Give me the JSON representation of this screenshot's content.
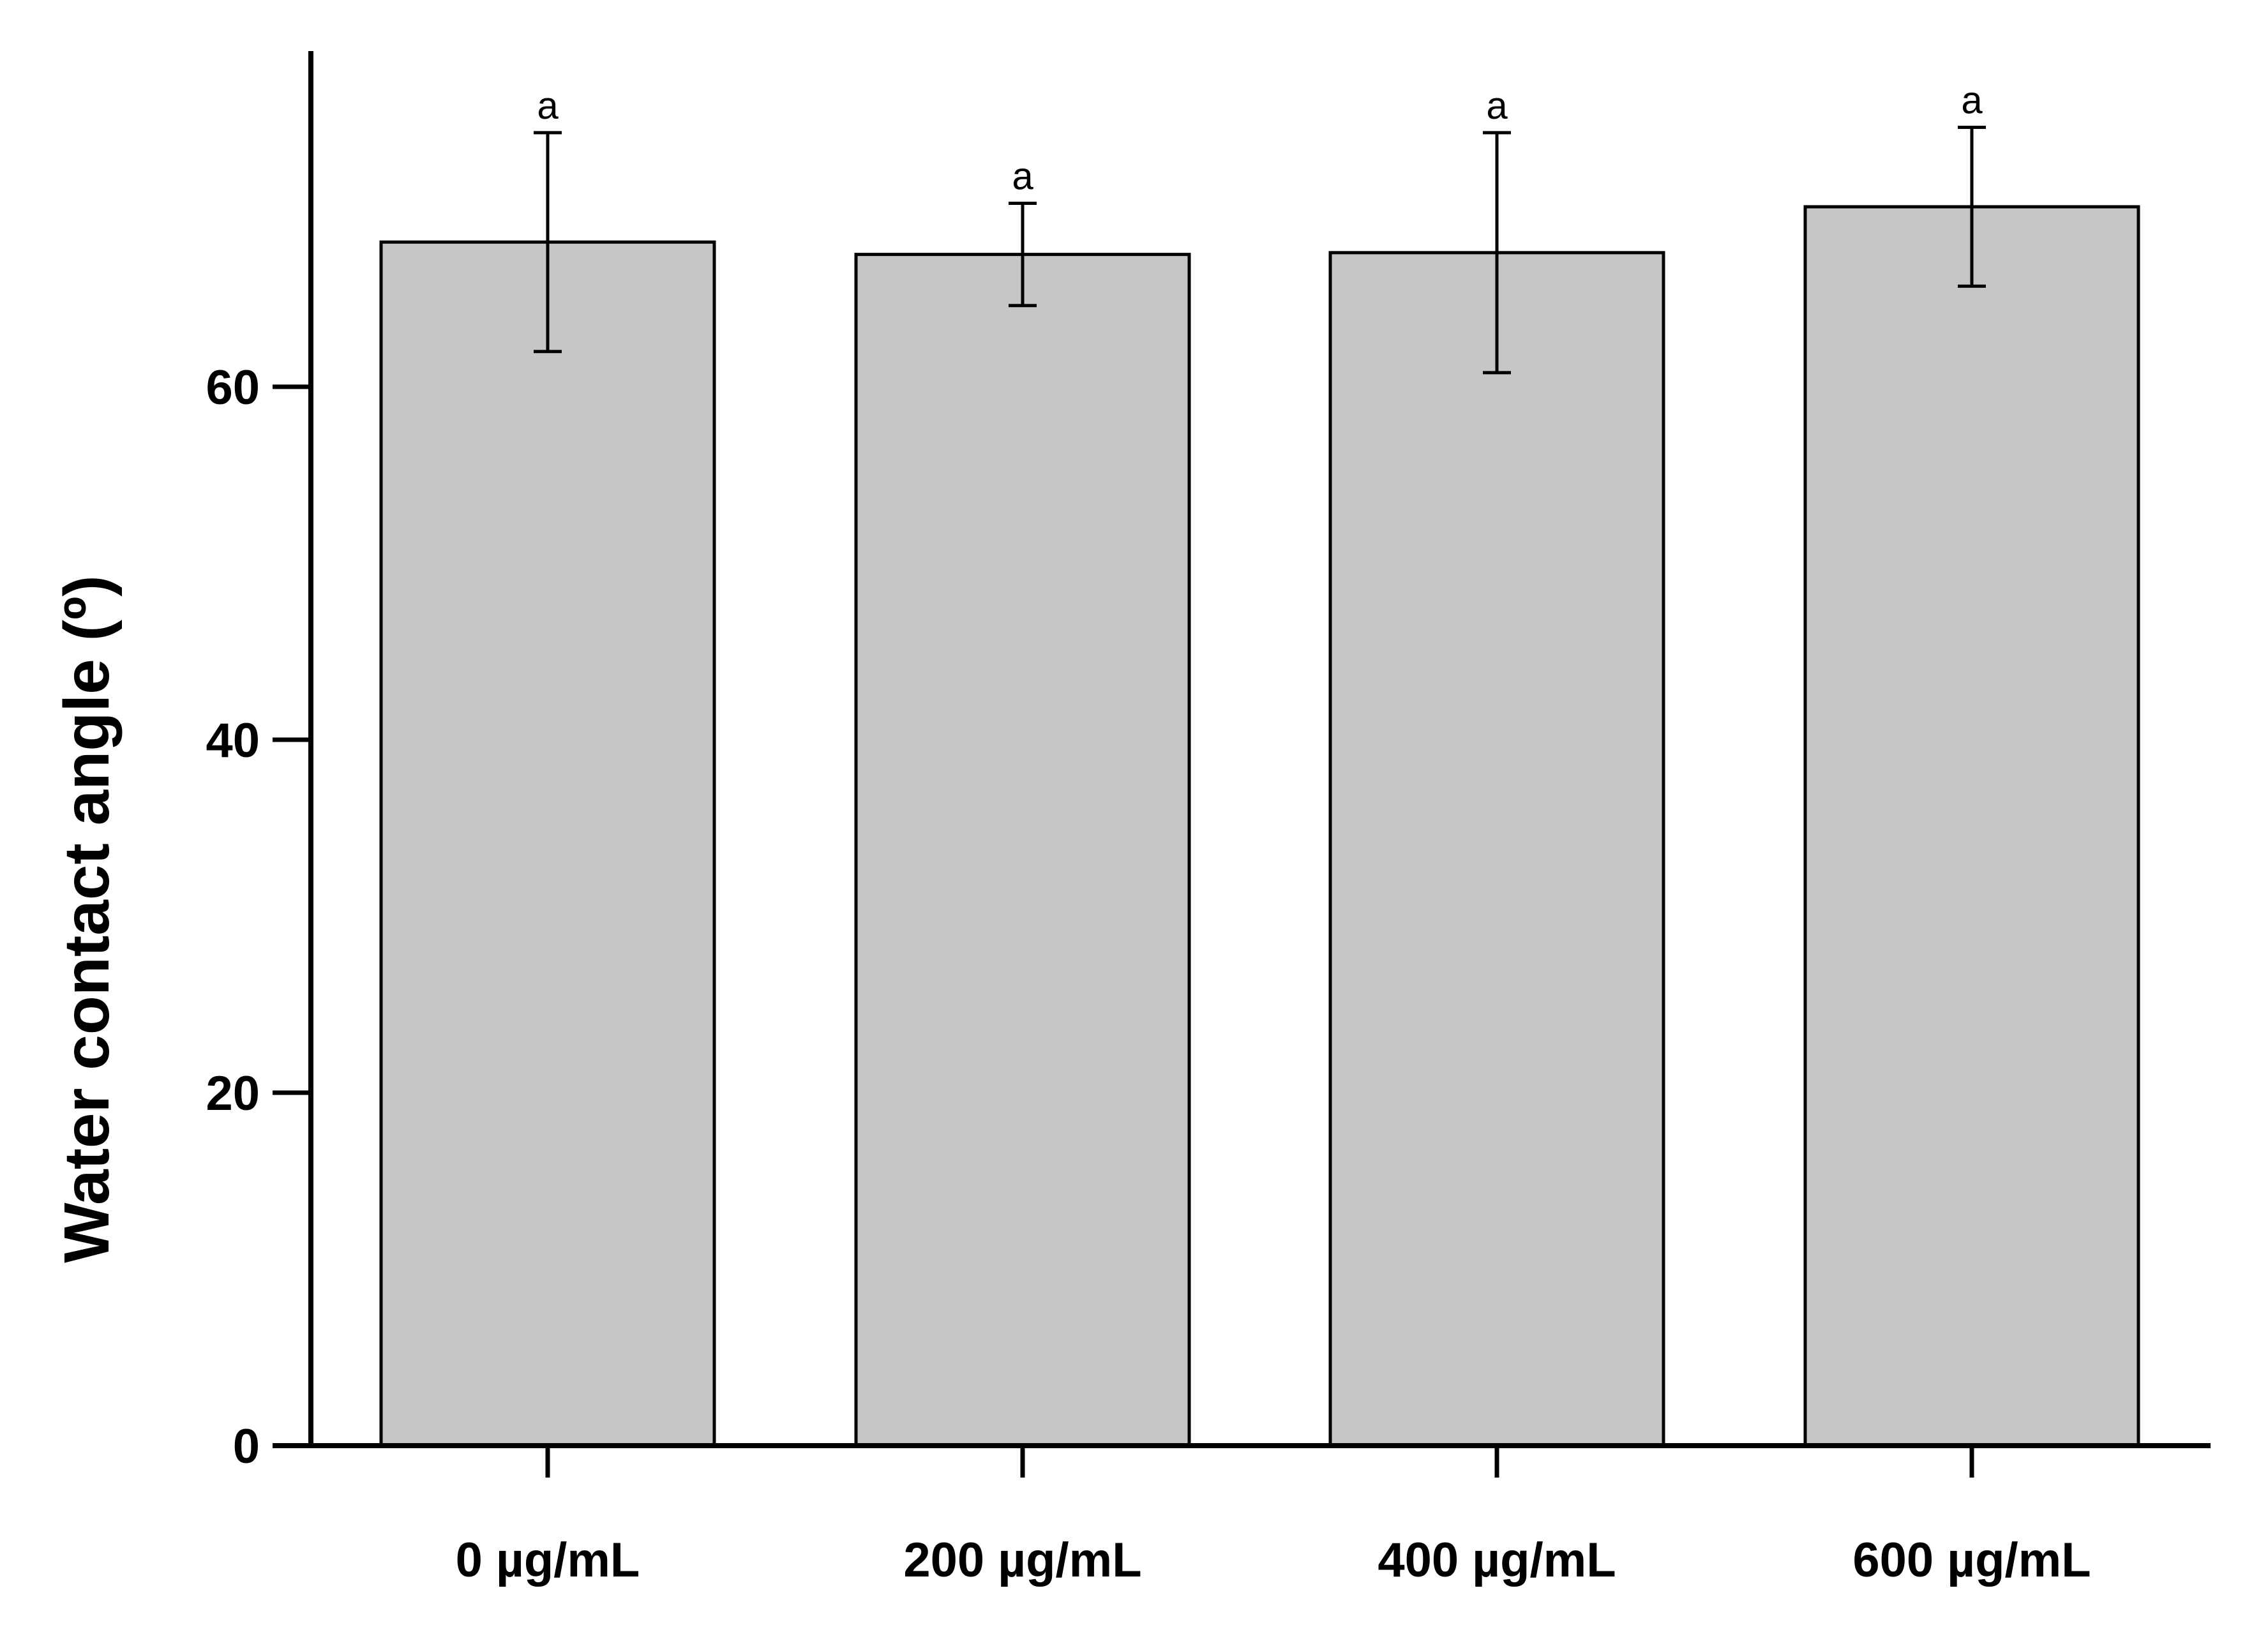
{
  "chart_data": {
    "type": "bar",
    "title": "",
    "xlabel": "",
    "ylabel": "Water contact angle (º)",
    "categories": [
      "0 µg/mL",
      "200 µg/mL",
      "400 µg/mL",
      "600 µg/mL"
    ],
    "values": [
      68.2,
      67.5,
      67.6,
      70.2
    ],
    "errors": [
      6.2,
      2.9,
      6.8,
      4.5
    ],
    "significance_labels": [
      "a",
      "a",
      "a",
      "a"
    ],
    "ylim": [
      0,
      79
    ],
    "yticks": [
      0,
      20,
      40,
      60
    ],
    "grid": false,
    "legend": "none",
    "colors": {
      "bar_fill": "#c6c6c6",
      "bar_stroke": "#000000",
      "axis": "#000000"
    }
  }
}
